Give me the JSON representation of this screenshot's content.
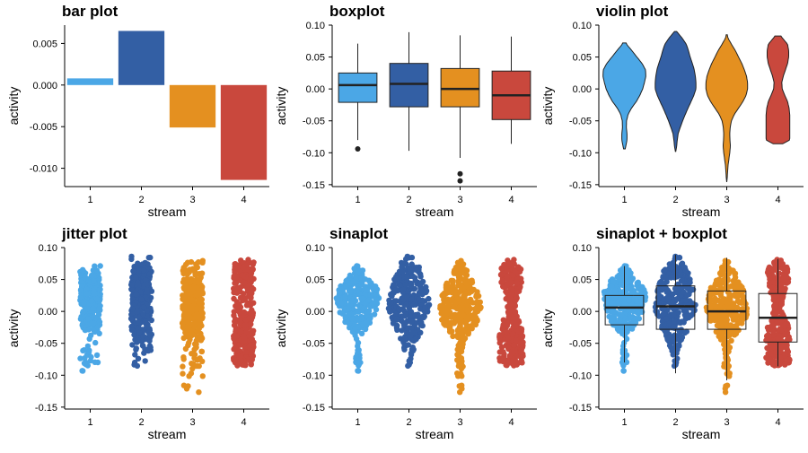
{
  "colors": {
    "stream_1": "#4BA7E6",
    "stream_2": "#335FA4",
    "stream_3": "#E49020",
    "stream_4": "#C9483D"
  },
  "chart_data": [
    {
      "type": "bar",
      "title": "bar plot",
      "xlabel": "stream",
      "ylabel": "activity",
      "categories": [
        "1",
        "2",
        "3",
        "4"
      ],
      "values": [
        0.0008,
        0.0065,
        -0.0051,
        -0.0114
      ],
      "ylim": [
        -0.0122,
        0.0072
      ],
      "yticks": [
        0.005,
        0.0,
        -0.005,
        -0.01
      ],
      "ytick_labels": [
        "0.005",
        "0.000",
        "-0.005",
        "-0.010"
      ],
      "grid": false,
      "legend": "none"
    },
    {
      "type": "boxplot",
      "title": "boxplot",
      "xlabel": "stream",
      "ylabel": "activity",
      "categories": [
        "1",
        "2",
        "3",
        "4"
      ],
      "boxes": [
        {
          "whisker_low": -0.08,
          "q1": -0.021,
          "median": 0.006,
          "q3": 0.025,
          "whisker_high": 0.071,
          "outliers": [
            -0.094
          ]
        },
        {
          "whisker_low": -0.097,
          "q1": -0.028,
          "median": 0.008,
          "q3": 0.04,
          "whisker_high": 0.089,
          "outliers": []
        },
        {
          "whisker_low": -0.108,
          "q1": -0.028,
          "median": 0.0,
          "q3": 0.032,
          "whisker_high": 0.084,
          "outliers": [
            -0.133,
            -0.144
          ]
        },
        {
          "whisker_low": -0.086,
          "q1": -0.048,
          "median": -0.01,
          "q3": 0.028,
          "whisker_high": 0.082,
          "outliers": []
        }
      ],
      "ylim": [
        -0.153,
        0.1
      ],
      "yticks": [
        0.1,
        0.05,
        0.0,
        -0.05,
        -0.1,
        -0.15
      ],
      "ytick_labels": [
        "0.10",
        "0.05",
        "0.00",
        "-0.05",
        "-0.10",
        "-0.15"
      ],
      "grid": false,
      "legend": "none"
    },
    {
      "type": "violin",
      "title": "violin plot",
      "xlabel": "stream",
      "ylabel": "activity",
      "categories": [
        "1",
        "2",
        "3",
        "4"
      ],
      "y_profile": [
        0.09,
        0.08,
        0.07,
        0.06,
        0.05,
        0.04,
        0.03,
        0.02,
        0.01,
        0.0,
        -0.01,
        -0.02,
        -0.03,
        -0.04,
        -0.05,
        -0.06,
        -0.07,
        -0.08,
        -0.09,
        -0.1,
        -0.11,
        -0.12,
        -0.13,
        -0.14,
        -0.145
      ],
      "violins": [
        {
          "y_min": -0.094,
          "y_max": 0.072,
          "half_widths": [
            0,
            0,
            0.1,
            0.35,
            0.58,
            0.82,
            0.98,
            1.0,
            0.93,
            0.85,
            0.72,
            0.55,
            0.33,
            0.17,
            0.1,
            0.09,
            0.12,
            0.12,
            0.06,
            0,
            0,
            0,
            0,
            0,
            0
          ]
        },
        {
          "y_min": -0.098,
          "y_max": 0.09,
          "half_widths": [
            0.05,
            0.3,
            0.5,
            0.6,
            0.68,
            0.78,
            0.87,
            0.92,
            0.95,
            0.95,
            0.85,
            0.72,
            0.58,
            0.45,
            0.33,
            0.22,
            0.12,
            0.08,
            0.05,
            0,
            0,
            0,
            0,
            0,
            0
          ]
        },
        {
          "y_min": -0.146,
          "y_max": 0.085,
          "half_widths": [
            0,
            0.05,
            0.22,
            0.4,
            0.55,
            0.7,
            0.82,
            0.92,
            0.97,
            0.97,
            0.9,
            0.75,
            0.55,
            0.35,
            0.22,
            0.16,
            0.14,
            0.15,
            0.17,
            0.14,
            0.1,
            0.06,
            0.04,
            0.02,
            0
          ]
        },
        {
          "y_min": -0.086,
          "y_max": 0.083,
          "half_widths": [
            0,
            0.2,
            0.45,
            0.5,
            0.5,
            0.45,
            0.35,
            0.25,
            0.18,
            0.2,
            0.32,
            0.45,
            0.52,
            0.55,
            0.55,
            0.55,
            0.55,
            0.55,
            0,
            0,
            0,
            0,
            0,
            0,
            0
          ]
        }
      ],
      "ylim": [
        -0.153,
        0.1
      ],
      "yticks": [
        0.1,
        0.05,
        0.0,
        -0.05,
        -0.1,
        -0.15
      ],
      "ytick_labels": [
        "0.10",
        "0.05",
        "0.00",
        "-0.05",
        "-0.10",
        "-0.15"
      ],
      "grid": false,
      "legend": "none"
    },
    {
      "type": "scatter",
      "title": "jitter plot",
      "xlabel": "stream",
      "ylabel": "activity",
      "categories": [
        "1",
        "2",
        "3",
        "4"
      ],
      "ylim": [
        -0.153,
        0.1
      ],
      "yticks": [
        0.1,
        0.05,
        0.0,
        -0.05,
        -0.1,
        -0.15
      ],
      "ytick_labels": [
        "0.10",
        "0.05",
        "0.00",
        "-0.05",
        "-0.10",
        "-0.15"
      ],
      "grid": false,
      "legend": "none"
    },
    {
      "type": "scatter",
      "title": "sinaplot",
      "xlabel": "stream",
      "ylabel": "activity",
      "categories": [
        "1",
        "2",
        "3",
        "4"
      ],
      "ylim": [
        -0.153,
        0.1
      ],
      "yticks": [
        0.1,
        0.05,
        0.0,
        -0.05,
        -0.1,
        -0.15
      ],
      "ytick_labels": [
        "0.10",
        "0.05",
        "0.00",
        "-0.05",
        "-0.10",
        "-0.15"
      ],
      "grid": false,
      "legend": "none"
    },
    {
      "type": "scatter",
      "title": "sinaplot + boxplot",
      "xlabel": "stream",
      "ylabel": "activity",
      "categories": [
        "1",
        "2",
        "3",
        "4"
      ],
      "ylim": [
        -0.153,
        0.1
      ],
      "yticks": [
        0.1,
        0.05,
        0.0,
        -0.05,
        -0.1,
        -0.15
      ],
      "ytick_labels": [
        "0.10",
        "0.05",
        "0.00",
        "-0.05",
        "-0.10",
        "-0.15"
      ],
      "grid": false,
      "legend": "none"
    }
  ]
}
